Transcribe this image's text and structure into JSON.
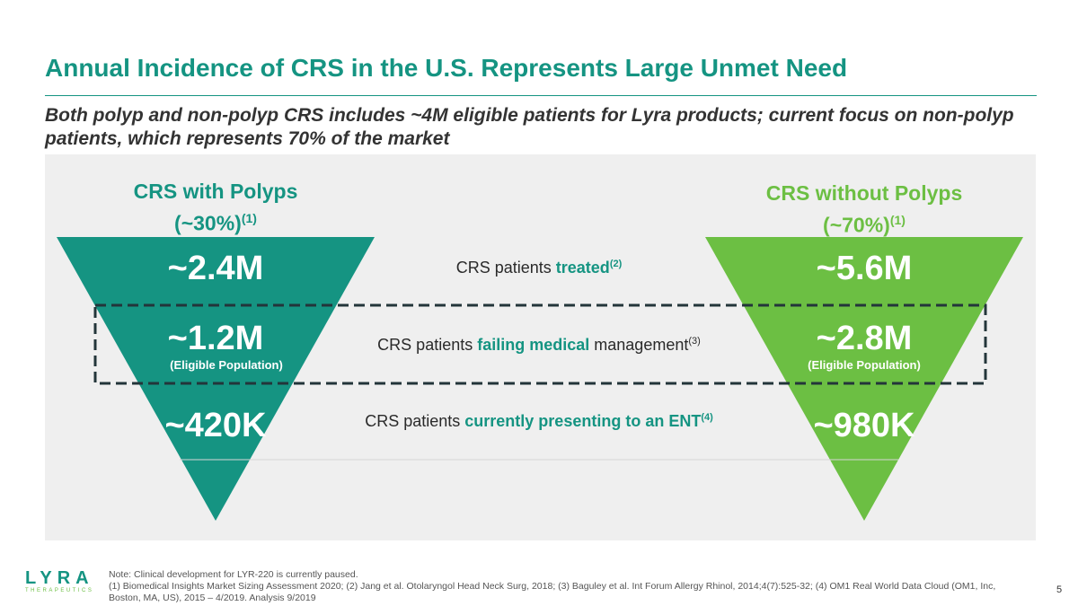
{
  "slide": {
    "title": "Annual Incidence of CRS in the U.S. Represents Large Unmet Need",
    "subtitle": "Both polyp and non-polyp CRS includes ~4M eligible patients for Lyra products; current focus on non-polyp patients, which represents 70% of the market",
    "page_number": "5"
  },
  "left": {
    "heading_line1": "CRS with Polyps",
    "heading_line2": "(~30%)",
    "heading_sup": "(1)",
    "treated": "~2.4M",
    "failing": "~1.2M",
    "eligible": "(Eligible Population)",
    "ent": "~420K",
    "color": "#159482"
  },
  "right": {
    "heading_line1": "CRS without Polyps",
    "heading_line2": "(~70%)",
    "heading_sup": "(1)",
    "treated": "~5.6M",
    "failing": "~2.8M",
    "eligible": "(Eligible Population)",
    "ent": "~980K",
    "color": "#6cbf43"
  },
  "rows": {
    "treated": {
      "pre": "CRS patients ",
      "hl": "treated",
      "sup": "(2)"
    },
    "failing": {
      "pre": "CRS patients ",
      "hl": "failing medical",
      "post": " management",
      "sup": "(3)"
    },
    "ent": {
      "pre": "CRS patients ",
      "hl": "currently presenting to an ENT",
      "sup": "(4)"
    }
  },
  "footer": {
    "logo_top": "LYRA",
    "logo_bottom": "THERAPEUTICS",
    "note": "Note: Clinical development for LYR-220 is currently paused.",
    "refs": "(1) Biomedical Insights Market Sizing Assessment 2020; (2) Jang et al. Otolaryngol Head Neck Surg, 2018; (3) Baguley et al. Int Forum Allergy Rhinol, 2014;4(7):525-32; (4) OM1 Real World Data Cloud (OM1, Inc, Boston, MA, US), 2015 – 4/2019. Analysis 9/2019"
  }
}
